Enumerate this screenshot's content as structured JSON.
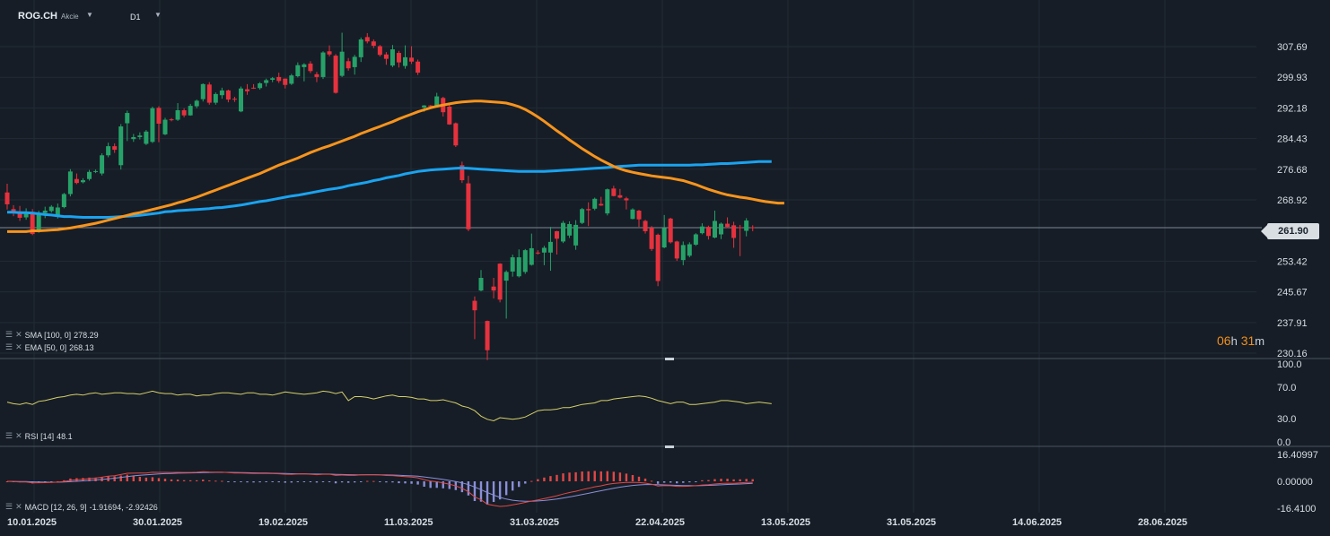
{
  "header": {
    "symbol": "ROG.CH",
    "type": "Akcie",
    "timeframe": "D1"
  },
  "price_axis": {
    "labels": [
      "307.69",
      "299.93",
      "292.18",
      "284.43",
      "276.68",
      "268.92",
      "253.42",
      "245.67",
      "237.91",
      "230.16"
    ],
    "current": "261.90"
  },
  "rsi_axis": {
    "labels": [
      "100.0",
      "70.0",
      "30.0",
      "0.0"
    ]
  },
  "macd_axis": {
    "labels": [
      "16.40997",
      "0.00000",
      "-16.4100"
    ]
  },
  "time_axis": {
    "labels": [
      "10.01.2025",
      "30.01.2025",
      "19.02.2025",
      "11.03.2025",
      "31.03.2025",
      "22.04.2025",
      "13.05.2025",
      "31.05.2025",
      "14.06.2025",
      "28.06.2025"
    ]
  },
  "indicators": {
    "sma": {
      "label": "SMA [100, 0]",
      "value": "278.29"
    },
    "ema": {
      "label": "EMA [50, 0]",
      "value": "268.13"
    },
    "rsi": {
      "label": "RSI [14]",
      "value": "48.1"
    },
    "macd": {
      "label": "MACD [12, 26, 9]",
      "value": "-1.91694, -2.92426"
    }
  },
  "countdown": {
    "h": "06",
    "m": "31",
    "hu": "h",
    "mu": "m"
  },
  "colors": {
    "up": "#26a269",
    "down": "#e5323e",
    "sma": "#1aa3f0",
    "ema": "#f7941d",
    "rsi": "#d6d06a",
    "macd": "#e04848",
    "signal": "#8a8fd8"
  },
  "chart_data": {
    "type": "candlestick",
    "y_range": [
      230.16,
      307.69
    ],
    "candles": [
      [
        270.8,
        267.8,
        273.0,
        266.5
      ],
      [
        266.6,
        265.8,
        267.6,
        264.8
      ],
      [
        266.0,
        264.4,
        267.4,
        263.6
      ],
      [
        264.5,
        265.8,
        266.8,
        263.9
      ],
      [
        265.9,
        260.3,
        266.6,
        260.0
      ],
      [
        260.9,
        265.6,
        266.2,
        260.6
      ],
      [
        265.6,
        266.2,
        267.2,
        264.3
      ],
      [
        266.1,
        267.2,
        267.6,
        265.7
      ],
      [
        264.8,
        267.0,
        268.0,
        264.2
      ],
      [
        267.1,
        270.4,
        270.7,
        266.8
      ],
      [
        270.4,
        276.1,
        276.7,
        269.8
      ],
      [
        274.2,
        273.2,
        275.6,
        272.9
      ],
      [
        273.4,
        273.9,
        274.4,
        273.1
      ],
      [
        274.2,
        276.0,
        276.5,
        273.8
      ],
      [
        276.1,
        276.2,
        276.6,
        275.7
      ],
      [
        275.6,
        280.2,
        280.7,
        275.1
      ],
      [
        280.2,
        282.5,
        283.4,
        279.7
      ],
      [
        282.5,
        281.6,
        283.2,
        280.8
      ],
      [
        277.7,
        287.5,
        288.1,
        276.6
      ],
      [
        288.3,
        290.9,
        291.5,
        283.8
      ],
      [
        284.3,
        284.8,
        285.6,
        283.6
      ],
      [
        284.8,
        285.2,
        286.0,
        284.2
      ],
      [
        283.1,
        286.2,
        286.6,
        282.8
      ],
      [
        283.6,
        292.1,
        292.5,
        283.3
      ],
      [
        292.2,
        288.2,
        292.6,
        283.5
      ],
      [
        285.5,
        289.2,
        289.7,
        285.3
      ],
      [
        289.3,
        289.2,
        289.6,
        288.8
      ],
      [
        289.2,
        291.6,
        293.4,
        288.9
      ],
      [
        291.6,
        290.3,
        292.1,
        289.8
      ],
      [
        290.3,
        292.7,
        293.2,
        290.2
      ],
      [
        292.6,
        294.0,
        294.3,
        292.1
      ],
      [
        294.4,
        298.2,
        298.4,
        293.8
      ],
      [
        298.1,
        293.5,
        298.7,
        293.0
      ],
      [
        293.5,
        295.7,
        296.1,
        293.0
      ],
      [
        295.4,
        296.6,
        297.3,
        294.5
      ],
      [
        296.6,
        294.3,
        296.8,
        293.6
      ],
      [
        294.5,
        294.3,
        295.0,
        293.7
      ],
      [
        291.3,
        297.1,
        297.6,
        291.1
      ],
      [
        296.9,
        296.4,
        298.2,
        295.5
      ],
      [
        297.3,
        297.1,
        298.2,
        297.0
      ],
      [
        297.2,
        298.4,
        298.7,
        296.8
      ],
      [
        298.5,
        299.2,
        299.6,
        297.6
      ],
      [
        299.3,
        299.7,
        300.0,
        298.7
      ],
      [
        300.0,
        299.0,
        301.1,
        298.5
      ],
      [
        299.6,
        298.0,
        299.6,
        297.1
      ],
      [
        298.3,
        300.4,
        300.8,
        298.0
      ],
      [
        300.2,
        303.0,
        303.7,
        299.9
      ],
      [
        302.5,
        303.2,
        303.5,
        298.9
      ],
      [
        303.4,
        301.5,
        304.0,
        301.0
      ],
      [
        300.7,
        300.0,
        301.3,
        298.7
      ],
      [
        300.0,
        306.2,
        306.5,
        299.5
      ],
      [
        306.5,
        305.7,
        308.0,
        305.2
      ],
      [
        305.4,
        296.0,
        305.8,
        295.8
      ],
      [
        300.3,
        306.4,
        311.2,
        300.0
      ],
      [
        304.0,
        302.2,
        304.8,
        301.6
      ],
      [
        302.5,
        305.1,
        305.6,
        300.6
      ],
      [
        305.0,
        309.5,
        310.0,
        303.8
      ],
      [
        310.1,
        309.0,
        311.1,
        308.5
      ],
      [
        309.0,
        307.9,
        309.5,
        307.3
      ],
      [
        307.8,
        305.6,
        308.1,
        305.2
      ],
      [
        305.7,
        304.6,
        306.3,
        303.1
      ],
      [
        302.9,
        307.0,
        308.1,
        302.5
      ],
      [
        306.1,
        303.7,
        306.6,
        302.4
      ],
      [
        302.8,
        305.0,
        308.0,
        302.1
      ],
      [
        304.9,
        303.9,
        307.8,
        303.3
      ],
      [
        303.9,
        301.1,
        304.4,
        300.5
      ],
      [
        292.3,
        292.8,
        292.9,
        291.2
      ],
      [
        292.8,
        292.6,
        292.9,
        292.5
      ],
      [
        292.6,
        295.1,
        296.0,
        292.4
      ],
      [
        294.7,
        291.1,
        295.0,
        290.0
      ],
      [
        292.5,
        288.0,
        293.4,
        287.9
      ],
      [
        288.3,
        282.7,
        288.5,
        282.3
      ],
      [
        277.7,
        273.9,
        278.6,
        273.2
      ],
      [
        273.1,
        261.5,
        275.0,
        261.0
      ],
      [
        243.4,
        241.0,
        244.5,
        233.7
      ],
      [
        246.0,
        249.2,
        251.2,
        245.8
      ],
      [
        238.3,
        230.9,
        238.4,
        228.4
      ],
      [
        247.0,
        246.0,
        249.2,
        244.0
      ],
      [
        252.8,
        243.7,
        252.9,
        243.0
      ],
      [
        248.5,
        250.7,
        251.1,
        238.9
      ],
      [
        250.8,
        254.4,
        255.1,
        249.5
      ],
      [
        249.6,
        254.4,
        256.4,
        249.3
      ],
      [
        250.7,
        256.2,
        256.5,
        250.2
      ],
      [
        252.5,
        256.7,
        260.4,
        252.3
      ],
      [
        255.6,
        255.5,
        256.2,
        255.1
      ],
      [
        255.6,
        256.8,
        257.3,
        252.4
      ],
      [
        255.6,
        258.3,
        262.1,
        251.0
      ],
      [
        261.0,
        259.1,
        261.1,
        255.1
      ],
      [
        258.4,
        263.1,
        263.6,
        258.0
      ],
      [
        259.9,
        262.8,
        263.5,
        259.3
      ],
      [
        257.4,
        262.6,
        263.8,
        256.3
      ],
      [
        263.1,
        266.6,
        266.9,
        262.8
      ],
      [
        266.6,
        266.3,
        268.3,
        262.3
      ],
      [
        266.7,
        269.2,
        269.5,
        266.3
      ],
      [
        267.9,
        267.5,
        269.7,
        267.4
      ],
      [
        265.5,
        271.6,
        271.8,
        265.0
      ],
      [
        271.8,
        269.9,
        272.5,
        269.8
      ],
      [
        270.1,
        269.5,
        271.7,
        269.3
      ],
      [
        269.3,
        268.8,
        269.7,
        266.5
      ],
      [
        264.1,
        266.5,
        266.8,
        264.0
      ],
      [
        266.2,
        264.0,
        266.4,
        262.1
      ],
      [
        263.6,
        261.0,
        263.9,
        260.4
      ],
      [
        261.9,
        256.5,
        262.3,
        256.0
      ],
      [
        260.1,
        248.4,
        260.4,
        247.1
      ],
      [
        256.9,
        261.8,
        265.1,
        256.7
      ],
      [
        264.2,
        258.2,
        264.4,
        257.9
      ],
      [
        258.4,
        254.1,
        258.6,
        253.5
      ],
      [
        253.7,
        257.5,
        258.4,
        252.4
      ],
      [
        254.8,
        257.7,
        258.2,
        254.4
      ],
      [
        257.6,
        260.2,
        260.5,
        257.3
      ],
      [
        260.5,
        262.2,
        263.0,
        260.2
      ],
      [
        262.1,
        259.8,
        262.4,
        258.9
      ],
      [
        259.4,
        263.6,
        266.2,
        259.2
      ],
      [
        260.2,
        262.9,
        263.2,
        259.0
      ],
      [
        262.9,
        262.1,
        264.5,
        261.8
      ],
      [
        262.5,
        259.3,
        263.4,
        256.8
      ],
      [
        262.0,
        261.9,
        262.6,
        254.7
      ],
      [
        261.1,
        263.7,
        264.3,
        259.7
      ],
      [
        262.0,
        261.8,
        262.5,
        261.0
      ]
    ],
    "sma_100": [
      265.8,
      265.8,
      265.7,
      265.7,
      265.6,
      265.4,
      265.2,
      265.1,
      264.9,
      264.7,
      264.7,
      264.6,
      264.5,
      264.5,
      264.5,
      264.5,
      264.5,
      264.6,
      264.7,
      264.8,
      264.9,
      265.0,
      265.2,
      265.4,
      265.6,
      265.9,
      266.0,
      266.2,
      266.3,
      266.4,
      266.5,
      266.6,
      266.7,
      266.9,
      267.0,
      267.2,
      267.4,
      267.6,
      267.9,
      268.2,
      268.5,
      268.7,
      269.0,
      269.3,
      269.6,
      269.9,
      270.1,
      270.4,
      270.7,
      271.0,
      271.3,
      271.6,
      271.8,
      272.1,
      272.5,
      272.8,
      273.1,
      273.4,
      273.8,
      274.1,
      274.5,
      274.8,
      275.1,
      275.5,
      275.8,
      276.1,
      276.3,
      276.5,
      276.6,
      276.7,
      276.8,
      276.9,
      277.0,
      276.9,
      276.8,
      276.7,
      276.6,
      276.5,
      276.4,
      276.3,
      276.2,
      276.1,
      276.1,
      276.1,
      276.1,
      276.1,
      276.2,
      276.3,
      276.4,
      276.5,
      276.6,
      276.7,
      276.8,
      276.9,
      277.0,
      277.1,
      277.3,
      277.4,
      277.5,
      277.6,
      277.7,
      277.7,
      277.7,
      277.7,
      277.7,
      277.7,
      277.7,
      277.7,
      277.7,
      277.8,
      277.8,
      277.9,
      278.0,
      278.1,
      278.1,
      278.2,
      278.3,
      278.4,
      278.5,
      278.6,
      278.6,
      278.6
    ],
    "ema_50": [
      260.9,
      260.9,
      260.9,
      260.9,
      261.1,
      261.1,
      261.2,
      261.3,
      261.4,
      261.6,
      261.8,
      262.1,
      262.4,
      262.7,
      263.0,
      263.4,
      263.8,
      264.2,
      264.6,
      265.0,
      265.4,
      265.7,
      266.1,
      266.5,
      266.9,
      267.3,
      267.7,
      268.2,
      268.6,
      269.1,
      269.6,
      270.2,
      270.8,
      271.4,
      272.0,
      272.6,
      273.2,
      273.8,
      274.4,
      275.0,
      275.6,
      276.3,
      277.0,
      277.7,
      278.3,
      278.9,
      279.5,
      280.2,
      280.9,
      281.5,
      282.1,
      282.6,
      283.2,
      283.8,
      284.4,
      285.0,
      285.7,
      286.3,
      286.9,
      287.5,
      288.1,
      288.7,
      289.4,
      290.0,
      290.6,
      291.2,
      291.7,
      292.2,
      292.6,
      292.9,
      293.2,
      293.5,
      293.7,
      293.8,
      293.9,
      293.9,
      293.8,
      293.7,
      293.6,
      293.4,
      293.0,
      292.5,
      291.8,
      290.9,
      289.9,
      288.8,
      287.6,
      286.4,
      285.3,
      284.1,
      283.0,
      281.9,
      280.9,
      279.9,
      279.0,
      278.2,
      277.4,
      276.8,
      276.3,
      275.9,
      275.6,
      275.3,
      275.0,
      274.8,
      274.6,
      274.4,
      274.1,
      273.8,
      273.3,
      272.8,
      272.2,
      271.6,
      271.1,
      270.6,
      270.2,
      269.9,
      269.6,
      269.4,
      269.1,
      268.8,
      268.5,
      268.3,
      268.1,
      268.1
    ],
    "rsi": [
      51,
      49,
      48,
      50,
      48,
      52,
      53,
      55,
      57,
      58,
      60,
      61,
      60,
      62,
      63,
      61,
      62,
      63,
      63,
      62,
      62,
      61,
      63,
      65,
      63,
      62,
      62,
      60,
      61,
      61,
      59,
      60,
      60,
      62,
      63,
      63,
      62,
      61,
      63,
      63,
      61,
      61,
      60,
      62,
      64,
      63,
      62,
      61,
      62,
      63,
      65,
      64,
      62,
      64,
      53,
      58,
      58,
      57,
      55,
      57,
      59,
      60,
      58,
      58,
      57,
      55,
      55,
      53,
      53,
      54,
      52,
      50,
      46,
      44,
      40,
      33,
      29,
      27,
      31,
      30,
      29,
      30,
      32,
      36,
      40,
      41,
      41,
      42,
      44,
      44,
      46,
      48,
      49,
      50,
      53,
      53,
      55,
      56,
      57,
      58,
      59,
      58,
      56,
      53,
      51,
      49,
      51,
      51,
      48,
      48,
      49,
      50,
      51,
      53,
      53,
      52,
      51,
      49,
      50,
      51,
      50,
      49
    ]
  }
}
